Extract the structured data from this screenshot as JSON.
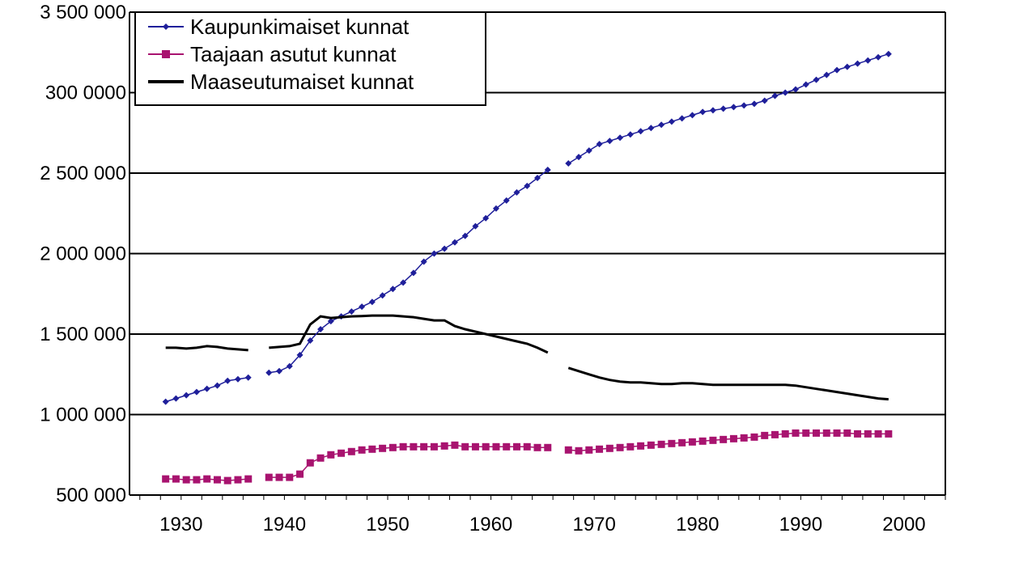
{
  "chart_data": {
    "type": "line",
    "title": "",
    "xlabel": "",
    "ylabel": "",
    "xlim": [
      1925,
      2004
    ],
    "ylim": [
      500000,
      3500000
    ],
    "y_ticks": [
      {
        "value": 3500000,
        "label": "3 500 000"
      },
      {
        "value": 3000000,
        "label": "300 0000"
      },
      {
        "value": 2500000,
        "label": "2 500 000"
      },
      {
        "value": 2000000,
        "label": "2 000 000"
      },
      {
        "value": 1500000,
        "label": "1 500 000"
      },
      {
        "value": 1000000,
        "label": "1 000 000"
      },
      {
        "value": 500000,
        "label": "500 000"
      }
    ],
    "x_ticks": [
      {
        "value": 1930,
        "label": "1930"
      },
      {
        "value": 1940,
        "label": "1940"
      },
      {
        "value": 1950,
        "label": "1950"
      },
      {
        "value": 1960,
        "label": "1960"
      },
      {
        "value": 1970,
        "label": "1970"
      },
      {
        "value": 1980,
        "label": "1980"
      },
      {
        "value": 1990,
        "label": "1990"
      },
      {
        "value": 2000,
        "label": "2000"
      }
    ],
    "grid": true,
    "legend_position": "top-left",
    "series": [
      {
        "name": "Kaupunkimaiset kunnat",
        "color": "#1f1f9a",
        "marker": "diamond",
        "segments": [
          {
            "x": [
              1928.5,
              1929.5,
              1930.5,
              1931.5,
              1932.5,
              1933.5,
              1934.5,
              1935.5,
              1936.5
            ],
            "y": [
              1080000,
              1100000,
              1120000,
              1140000,
              1160000,
              1180000,
              1210000,
              1220000,
              1230000
            ]
          },
          {
            "x": [
              1938.5,
              1939.5,
              1940.5,
              1941.5,
              1942.5,
              1943.5,
              1944.5,
              1945.5,
              1946.5,
              1947.5,
              1948.5,
              1949.5,
              1950.5,
              1951.5,
              1952.5,
              1953.5,
              1954.5,
              1955.5,
              1956.5,
              1957.5,
              1958.5,
              1959.5,
              1960.5,
              1961.5,
              1962.5,
              1963.5,
              1964.5,
              1965.5
            ],
            "y": [
              1260000,
              1270000,
              1300000,
              1370000,
              1460000,
              1530000,
              1580000,
              1610000,
              1640000,
              1670000,
              1700000,
              1740000,
              1780000,
              1820000,
              1880000,
              1950000,
              2000000,
              2030000,
              2070000,
              2110000,
              2170000,
              2220000,
              2280000,
              2330000,
              2380000,
              2420000,
              2470000,
              2520000
            ]
          },
          {
            "x": [
              1967.5,
              1968.5,
              1969.5,
              1970.5,
              1971.5,
              1972.5,
              1973.5,
              1974.5,
              1975.5,
              1976.5,
              1977.5,
              1978.5,
              1979.5,
              1980.5,
              1981.5,
              1982.5,
              1983.5,
              1984.5,
              1985.5,
              1986.5,
              1987.5,
              1988.5,
              1989.5,
              1990.5,
              1991.5,
              1992.5,
              1993.5,
              1994.5,
              1995.5,
              1996.5,
              1997.5,
              1998.5
            ],
            "y": [
              2560000,
              2600000,
              2640000,
              2680000,
              2700000,
              2720000,
              2740000,
              2760000,
              2780000,
              2800000,
              2820000,
              2840000,
              2860000,
              2880000,
              2890000,
              2900000,
              2910000,
              2920000,
              2930000,
              2950000,
              2980000,
              3000000,
              3020000,
              3050000,
              3080000,
              3110000,
              3140000,
              3160000,
              3180000,
              3200000,
              3220000,
              3240000
            ]
          }
        ]
      },
      {
        "name": "Taajaan asutut kunnat",
        "color": "#a8136f",
        "marker": "square",
        "segments": [
          {
            "x": [
              1928.5,
              1929.5,
              1930.5,
              1931.5,
              1932.5,
              1933.5,
              1934.5,
              1935.5,
              1936.5
            ],
            "y": [
              600000,
              600000,
              595000,
              595000,
              600000,
              595000,
              590000,
              595000,
              600000
            ]
          },
          {
            "x": [
              1938.5,
              1939.5,
              1940.5,
              1941.5,
              1942.5,
              1943.5,
              1944.5,
              1945.5,
              1946.5,
              1947.5,
              1948.5,
              1949.5,
              1950.5,
              1951.5,
              1952.5,
              1953.5,
              1954.5,
              1955.5,
              1956.5,
              1957.5,
              1958.5,
              1959.5,
              1960.5,
              1961.5,
              1962.5,
              1963.5,
              1964.5,
              1965.5
            ],
            "y": [
              610000,
              610000,
              610000,
              630000,
              700000,
              730000,
              750000,
              760000,
              770000,
              780000,
              785000,
              790000,
              795000,
              800000,
              800000,
              800000,
              800000,
              805000,
              810000,
              800000,
              800000,
              800000,
              800000,
              800000,
              800000,
              800000,
              795000,
              795000
            ]
          },
          {
            "x": [
              1967.5,
              1968.5,
              1969.5,
              1970.5,
              1971.5,
              1972.5,
              1973.5,
              1974.5,
              1975.5,
              1976.5,
              1977.5,
              1978.5,
              1979.5,
              1980.5,
              1981.5,
              1982.5,
              1983.5,
              1984.5,
              1985.5,
              1986.5,
              1987.5,
              1988.5,
              1989.5,
              1990.5,
              1991.5,
              1992.5,
              1993.5,
              1994.5,
              1995.5,
              1996.5,
              1997.5,
              1998.5
            ],
            "y": [
              780000,
              775000,
              780000,
              785000,
              790000,
              795000,
              800000,
              805000,
              810000,
              815000,
              820000,
              825000,
              830000,
              835000,
              840000,
              845000,
              850000,
              855000,
              860000,
              870000,
              875000,
              880000,
              885000,
              885000,
              885000,
              885000,
              885000,
              885000,
              880000,
              880000,
              880000,
              880000
            ]
          }
        ]
      },
      {
        "name": "Maaseutumaiset kunnat",
        "color": "#000000",
        "marker": "none",
        "segments": [
          {
            "x": [
              1928.5,
              1929.5,
              1930.5,
              1931.5,
              1932.5,
              1933.5,
              1934.5,
              1935.5,
              1936.5
            ],
            "y": [
              1415000,
              1415000,
              1410000,
              1415000,
              1425000,
              1420000,
              1410000,
              1405000,
              1400000
            ]
          },
          {
            "x": [
              1938.5,
              1939.5,
              1940.5,
              1941.5,
              1942.5,
              1943.5,
              1944.5,
              1945.5,
              1946.5,
              1947.5,
              1948.5,
              1949.5,
              1950.5,
              1951.5,
              1952.5,
              1953.5,
              1954.5,
              1955.5,
              1956.5,
              1957.5,
              1958.5,
              1959.5,
              1960.5,
              1961.5,
              1962.5,
              1963.5,
              1964.5,
              1965.5
            ],
            "y": [
              1415000,
              1420000,
              1425000,
              1440000,
              1560000,
              1610000,
              1600000,
              1605000,
              1610000,
              1612000,
              1615000,
              1615000,
              1615000,
              1610000,
              1605000,
              1595000,
              1585000,
              1585000,
              1550000,
              1530000,
              1515000,
              1500000,
              1485000,
              1470000,
              1455000,
              1440000,
              1415000,
              1385000
            ]
          },
          {
            "x": [
              1967.5,
              1968.5,
              1969.5,
              1970.5,
              1971.5,
              1972.5,
              1973.5,
              1974.5,
              1975.5,
              1976.5,
              1977.5,
              1978.5,
              1979.5,
              1980.5,
              1981.5,
              1982.5,
              1983.5,
              1984.5,
              1985.5,
              1986.5,
              1987.5,
              1988.5,
              1989.5,
              1990.5,
              1991.5,
              1992.5,
              1993.5,
              1994.5,
              1995.5,
              1996.5,
              1997.5,
              1998.5
            ],
            "y": [
              1290000,
              1270000,
              1250000,
              1230000,
              1215000,
              1205000,
              1200000,
              1200000,
              1195000,
              1190000,
              1190000,
              1195000,
              1195000,
              1190000,
              1185000,
              1185000,
              1185000,
              1185000,
              1185000,
              1185000,
              1185000,
              1185000,
              1180000,
              1170000,
              1160000,
              1150000,
              1140000,
              1130000,
              1120000,
              1110000,
              1100000,
              1095000
            ]
          }
        ]
      }
    ]
  }
}
